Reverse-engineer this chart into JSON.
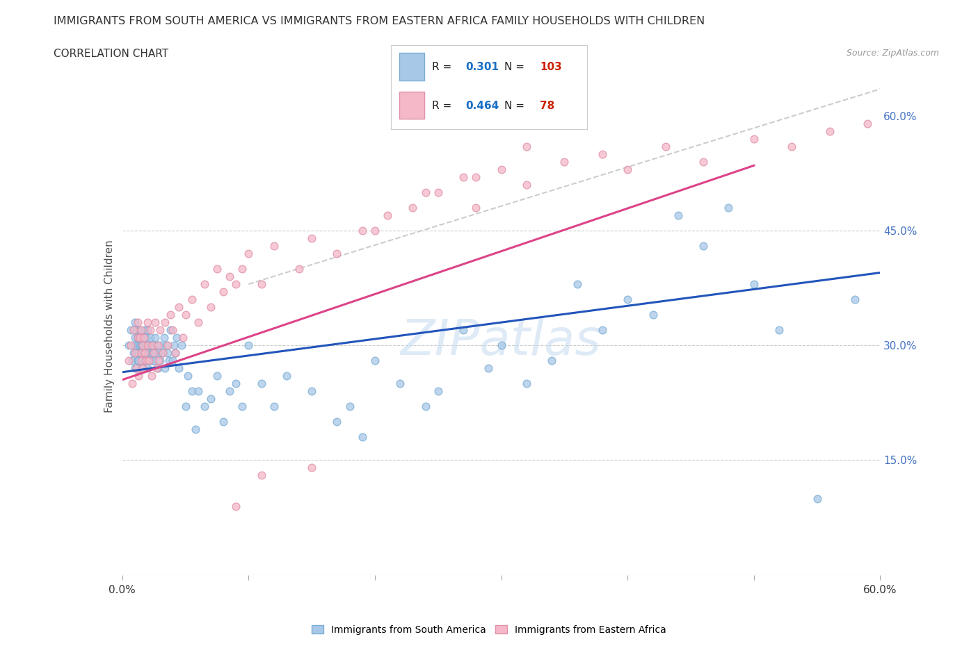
{
  "title": "IMMIGRANTS FROM SOUTH AMERICA VS IMMIGRANTS FROM EASTERN AFRICA FAMILY HOUSEHOLDS WITH CHILDREN",
  "subtitle": "CORRELATION CHART",
  "source": "Source: ZipAtlas.com",
  "ylabel": "Family Households with Children",
  "xlim": [
    0.0,
    0.6
  ],
  "ylim": [
    0.0,
    0.65
  ],
  "ytick_right": [
    0.15,
    0.3,
    0.45,
    0.6
  ],
  "ytick_right_labels": [
    "15.0%",
    "30.0%",
    "45.0%",
    "60.0%"
  ],
  "hlines": [
    0.15,
    0.3,
    0.45
  ],
  "blue_color": "#a8c8e8",
  "pink_color": "#f4b8c8",
  "blue_edge": "#7aadd4",
  "pink_edge": "#e090a8",
  "trend_blue": "#2255bb",
  "trend_pink": "#dd4488",
  "legend_color_r": "#1a6fc4",
  "legend_color_n": "#cc2200",
  "watermark_color": "#c8ddf0",
  "blue_trend_x": [
    0.0,
    0.6
  ],
  "blue_trend_y": [
    0.265,
    0.395
  ],
  "pink_trend_x": [
    0.0,
    0.5
  ],
  "pink_trend_y": [
    0.255,
    0.535
  ],
  "dash_line_x": [
    0.1,
    0.6
  ],
  "dash_line_y": [
    0.38,
    0.635
  ],
  "south_america_x": [
    0.005,
    0.007,
    0.008,
    0.009,
    0.01,
    0.01,
    0.01,
    0.01,
    0.011,
    0.011,
    0.012,
    0.012,
    0.012,
    0.013,
    0.013,
    0.013,
    0.014,
    0.014,
    0.015,
    0.015,
    0.015,
    0.015,
    0.016,
    0.016,
    0.017,
    0.017,
    0.018,
    0.018,
    0.018,
    0.019,
    0.019,
    0.02,
    0.02,
    0.02,
    0.021,
    0.021,
    0.022,
    0.022,
    0.023,
    0.023,
    0.024,
    0.025,
    0.025,
    0.026,
    0.026,
    0.027,
    0.028,
    0.029,
    0.03,
    0.03,
    0.032,
    0.033,
    0.034,
    0.035,
    0.036,
    0.037,
    0.038,
    0.04,
    0.041,
    0.042,
    0.043,
    0.045,
    0.047,
    0.05,
    0.052,
    0.055,
    0.058,
    0.06,
    0.065,
    0.07,
    0.075,
    0.08,
    0.085,
    0.09,
    0.095,
    0.1,
    0.11,
    0.12,
    0.13,
    0.15,
    0.17,
    0.18,
    0.19,
    0.2,
    0.22,
    0.24,
    0.25,
    0.27,
    0.29,
    0.3,
    0.32,
    0.34,
    0.36,
    0.38,
    0.4,
    0.42,
    0.44,
    0.46,
    0.48,
    0.5,
    0.52,
    0.55,
    0.58
  ],
  "south_america_y": [
    0.3,
    0.32,
    0.28,
    0.29,
    0.31,
    0.27,
    0.33,
    0.3,
    0.29,
    0.32,
    0.28,
    0.31,
    0.3,
    0.29,
    0.31,
    0.28,
    0.3,
    0.32,
    0.27,
    0.3,
    0.29,
    0.31,
    0.3,
    0.28,
    0.31,
    0.29,
    0.28,
    0.3,
    0.32,
    0.29,
    0.31,
    0.27,
    0.3,
    0.32,
    0.29,
    0.28,
    0.3,
    0.31,
    0.28,
    0.3,
    0.29,
    0.28,
    0.3,
    0.31,
    0.29,
    0.3,
    0.27,
    0.29,
    0.28,
    0.3,
    0.29,
    0.31,
    0.27,
    0.3,
    0.29,
    0.28,
    0.32,
    0.28,
    0.3,
    0.29,
    0.31,
    0.27,
    0.3,
    0.22,
    0.26,
    0.24,
    0.19,
    0.24,
    0.22,
    0.23,
    0.26,
    0.2,
    0.24,
    0.25,
    0.22,
    0.3,
    0.25,
    0.22,
    0.26,
    0.24,
    0.2,
    0.22,
    0.18,
    0.28,
    0.25,
    0.22,
    0.24,
    0.32,
    0.27,
    0.3,
    0.25,
    0.28,
    0.38,
    0.32,
    0.36,
    0.34,
    0.47,
    0.43,
    0.48,
    0.38,
    0.32,
    0.1,
    0.36
  ],
  "eastern_africa_x": [
    0.005,
    0.007,
    0.008,
    0.009,
    0.01,
    0.011,
    0.012,
    0.012,
    0.013,
    0.014,
    0.015,
    0.015,
    0.015,
    0.016,
    0.016,
    0.017,
    0.018,
    0.019,
    0.02,
    0.02,
    0.021,
    0.022,
    0.023,
    0.024,
    0.025,
    0.026,
    0.027,
    0.028,
    0.029,
    0.03,
    0.032,
    0.034,
    0.036,
    0.038,
    0.04,
    0.042,
    0.045,
    0.048,
    0.05,
    0.055,
    0.06,
    0.065,
    0.07,
    0.075,
    0.08,
    0.085,
    0.09,
    0.095,
    0.1,
    0.11,
    0.12,
    0.14,
    0.15,
    0.17,
    0.19,
    0.21,
    0.23,
    0.25,
    0.28,
    0.3,
    0.32,
    0.35,
    0.38,
    0.4,
    0.43,
    0.46,
    0.5,
    0.53,
    0.56,
    0.59,
    0.27,
    0.32,
    0.2,
    0.24,
    0.28,
    0.15,
    0.09,
    0.11
  ],
  "eastern_africa_y": [
    0.28,
    0.3,
    0.25,
    0.32,
    0.29,
    0.27,
    0.31,
    0.33,
    0.26,
    0.31,
    0.29,
    0.28,
    0.32,
    0.3,
    0.27,
    0.31,
    0.29,
    0.28,
    0.3,
    0.33,
    0.28,
    0.32,
    0.26,
    0.3,
    0.29,
    0.33,
    0.27,
    0.3,
    0.28,
    0.32,
    0.29,
    0.33,
    0.3,
    0.34,
    0.32,
    0.29,
    0.35,
    0.31,
    0.34,
    0.36,
    0.33,
    0.38,
    0.35,
    0.4,
    0.37,
    0.39,
    0.38,
    0.4,
    0.42,
    0.38,
    0.43,
    0.4,
    0.44,
    0.42,
    0.45,
    0.47,
    0.48,
    0.5,
    0.52,
    0.53,
    0.51,
    0.54,
    0.55,
    0.53,
    0.56,
    0.54,
    0.57,
    0.56,
    0.58,
    0.59,
    0.52,
    0.56,
    0.45,
    0.5,
    0.48,
    0.14,
    0.09,
    0.13
  ],
  "marker_size": 60,
  "legend_r_blue": "0.301",
  "legend_n_blue": "103",
  "legend_r_pink": "0.464",
  "legend_n_pink": "78"
}
